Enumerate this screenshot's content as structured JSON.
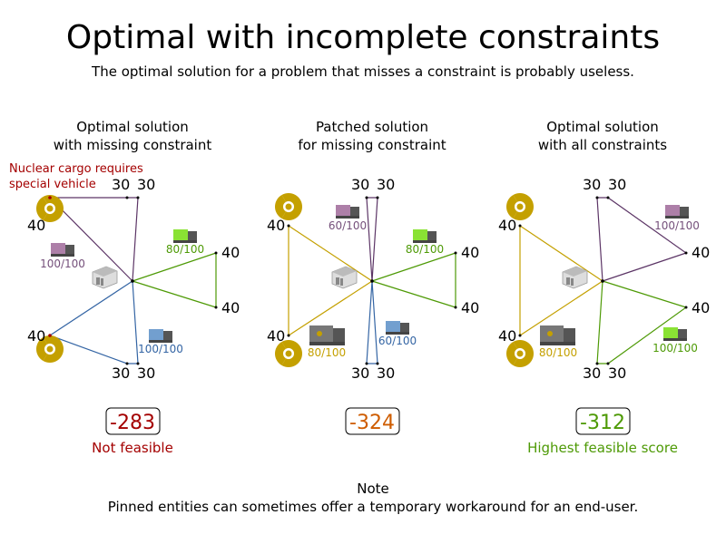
{
  "title": "Optimal with incomplete constraints",
  "subtitle": "The optimal solution for a problem that misses a constraint is probably useless.",
  "colors": {
    "purple": "#5c3566",
    "purple_text": "#75507b",
    "green": "#4e9a06",
    "blue": "#3465a4",
    "yellow": "#c4a000",
    "red": "#a40000",
    "orange": "#ce5c00"
  },
  "panels": [
    {
      "heading": [
        "Optimal solution",
        "with missing constraint"
      ],
      "annotation": [
        "Nuclear cargo requires",
        "special vehicle"
      ],
      "score": "-283",
      "status": "Not feasible",
      "loads": [
        "100/100",
        "80/100",
        "100/100"
      ]
    },
    {
      "heading": [
        "Patched solution",
        "for missing constraint"
      ],
      "score": "-324",
      "status": "",
      "loads": [
        "60/100",
        "80/100",
        "60/100",
        "80/100"
      ]
    },
    {
      "heading": [
        "Optimal solution",
        "with all constraints"
      ],
      "score": "-312",
      "status": "Highest feasible score",
      "loads": [
        "100/100",
        "100/100",
        "80/100"
      ]
    }
  ],
  "demands": {
    "large": "40",
    "small": "30"
  },
  "icons": [
    "radiation-icon",
    "truck-icon",
    "depot-icon"
  ],
  "note": {
    "title": "Note",
    "text": "Pinned entities can sometimes offer a temporary workaround for an end-user."
  }
}
